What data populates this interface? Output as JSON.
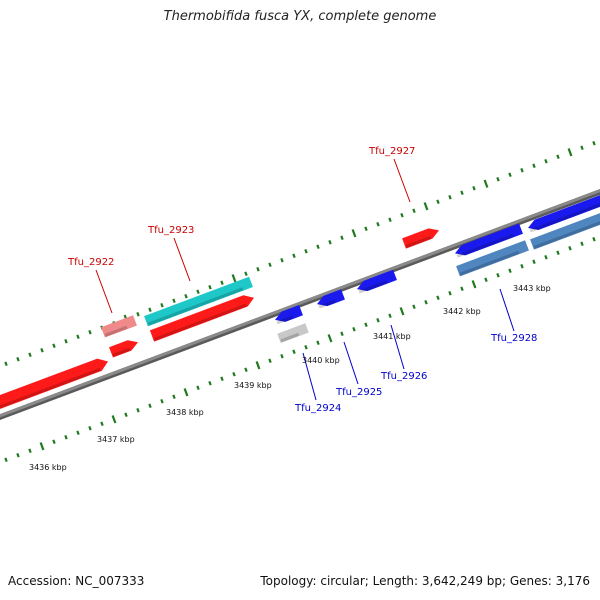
{
  "title": "Thermobifida fusca YX, complete genome",
  "footer": {
    "accession": "Accession: NC_007333",
    "summary": "Topology: circular; Length: 3,642,249 bp; Genes: 3,176"
  },
  "colors": {
    "backbone": "#8a8a8a",
    "ticks": "#1f7a1f",
    "forward_gene": "#ff1a1a",
    "forward_pseudo": "#f08a8a",
    "reverse_gene": "#1a1aee",
    "reverse_pseudo": "#c8c8c8",
    "rna_forward": "#1ec8c8",
    "rna_reverse": "#4f86c0",
    "label_forward": "#cc0000",
    "label_reverse": "#0000cc"
  },
  "scale_labels": [
    "3436 kbp",
    "3437 kbp",
    "3438 kbp",
    "3439 kbp",
    "3440 kbp",
    "3441 kbp",
    "3442 kbp",
    "3443 kbp"
  ],
  "gene_labels": [
    {
      "name": "Tfu_2922",
      "strand": "forward"
    },
    {
      "name": "Tfu_2923",
      "strand": "forward"
    },
    {
      "name": "Tfu_2927",
      "strand": "forward"
    },
    {
      "name": "Tfu_2924",
      "strand": "reverse"
    },
    {
      "name": "Tfu_2925",
      "strand": "reverse"
    },
    {
      "name": "Tfu_2926",
      "strand": "reverse"
    },
    {
      "name": "Tfu_2928",
      "strand": "reverse"
    }
  ]
}
